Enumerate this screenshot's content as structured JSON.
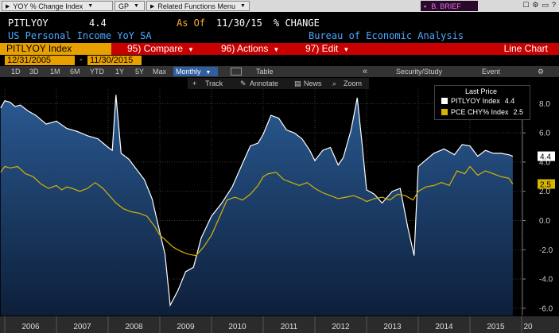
{
  "toolbar": {
    "ticker_field": "YOY % Change Index",
    "currency": "GP",
    "related": "Related Functions Menu",
    "brief": "B. BRIEF"
  },
  "header": {
    "ticker": "PITLYOY",
    "last": "4.4",
    "as_of_label": "As Of",
    "as_of_date": "11/30/15",
    "change_label": "% CHANGE",
    "description": "US Personal Income YoY SA",
    "source": "Bureau of Economic Analysis"
  },
  "function_bar": {
    "index_label": "PITLYOY Index",
    "compare": "95) Compare",
    "actions": "96) Actions",
    "edit": "97) Edit",
    "chart_type": "Line Chart"
  },
  "dates": {
    "start": "12/31/2005",
    "dash": "-",
    "end": "11/30/2015"
  },
  "period_bar": {
    "periods": [
      "1D",
      "3D",
      "1M",
      "6M",
      "YTD",
      "1Y",
      "5Y",
      "Max"
    ],
    "frequency": "Monthly",
    "table": "Table",
    "collapse": "«",
    "security_study": "Security/Study",
    "event": "Event"
  },
  "tools": {
    "track": "Track",
    "annotate": "Annotate",
    "news": "News",
    "zoom": "Zoom"
  },
  "chart_data": {
    "type": "line",
    "title": "",
    "xlabel": "",
    "ylabel": "",
    "x_tick_labels": [
      "2006",
      "2007",
      "2008",
      "2009",
      "2010",
      "2011",
      "2012",
      "2013",
      "2014",
      "2015",
      "20"
    ],
    "y_ticks": [
      -6.0,
      -4.0,
      -2.0,
      0.0,
      2.0,
      4.0,
      6.0,
      8.0
    ],
    "ylim": [
      -6.5,
      9.0
    ],
    "xlim": [
      2006.0,
      2016.0
    ],
    "legend": {
      "title": "Last Price",
      "placement": "top-right",
      "entries": [
        {
          "name": "PITLYOY Index",
          "value": "4.4",
          "color": "#ffffff"
        },
        {
          "name": "PCE CHY% Index",
          "value": "2.5",
          "color": "#d6b400"
        }
      ]
    },
    "last_value_labels": [
      {
        "series": "PITLYOY Index",
        "value": 4.4,
        "label": "4.4"
      },
      {
        "series": "PCE CHY% Index",
        "value": 2.5,
        "label": "2.5"
      }
    ],
    "series": [
      {
        "name": "PITLYOY Index",
        "color": "#ffffff",
        "fill": "area",
        "x": [
          2005.92,
          2006.0,
          2006.1,
          2006.2,
          2006.3,
          2006.45,
          2006.6,
          2006.8,
          2007.0,
          2007.2,
          2007.4,
          2007.6,
          2007.8,
          2007.9,
          2008.0,
          2008.08,
          2008.15,
          2008.25,
          2008.4,
          2008.55,
          2008.7,
          2008.85,
          2009.0,
          2009.1,
          2009.2,
          2009.35,
          2009.5,
          2009.65,
          2009.8,
          2010.0,
          2010.2,
          2010.4,
          2010.55,
          2010.75,
          2010.9,
          2011.0,
          2011.15,
          2011.3,
          2011.45,
          2011.6,
          2011.75,
          2011.9,
          2012.0,
          2012.15,
          2012.3,
          2012.45,
          2012.55,
          2012.7,
          2012.82,
          2012.92,
          2013.0,
          2013.15,
          2013.3,
          2013.5,
          2013.65,
          2013.8,
          2013.92,
          2014.0,
          2014.1,
          2014.3,
          2014.5,
          2014.7,
          2014.85,
          2015.0,
          2015.15,
          2015.3,
          2015.45,
          2015.6,
          2015.75,
          2015.83
        ],
        "y": [
          7.7,
          8.2,
          8.1,
          7.8,
          7.9,
          7.5,
          7.2,
          6.6,
          6.8,
          6.3,
          6.1,
          5.8,
          5.6,
          5.3,
          5.0,
          4.8,
          8.6,
          4.6,
          4.2,
          3.5,
          2.8,
          1.5,
          -0.8,
          -2.3,
          -5.8,
          -4.8,
          -3.5,
          -3.2,
          -1.2,
          0.3,
          1.2,
          2.3,
          3.5,
          5.1,
          5.3,
          5.9,
          7.2,
          7.0,
          6.2,
          6.0,
          5.6,
          4.8,
          4.1,
          4.8,
          5.0,
          3.8,
          4.3,
          6.2,
          8.4,
          5.0,
          2.1,
          1.8,
          1.2,
          2.0,
          2.2,
          -0.5,
          -2.4,
          3.7,
          4.0,
          4.6,
          4.9,
          4.5,
          5.2,
          5.1,
          4.4,
          4.8,
          4.6,
          4.6,
          4.5,
          4.4
        ]
      },
      {
        "name": "PCE CHY% Index",
        "color": "#d6b400",
        "fill": "none",
        "x": [
          2005.92,
          2006.0,
          2006.1,
          2006.25,
          2006.4,
          2006.55,
          2006.7,
          2006.85,
          2007.0,
          2007.1,
          2007.2,
          2007.3,
          2007.45,
          2007.6,
          2007.75,
          2007.9,
          2008.0,
          2008.15,
          2008.3,
          2008.45,
          2008.6,
          2008.75,
          2008.9,
          2009.0,
          2009.1,
          2009.25,
          2009.4,
          2009.55,
          2009.7,
          2009.85,
          2010.0,
          2010.15,
          2010.3,
          2010.45,
          2010.6,
          2010.75,
          2010.9,
          2011.0,
          2011.1,
          2011.25,
          2011.4,
          2011.55,
          2011.7,
          2011.85,
          2012.0,
          2012.15,
          2012.3,
          2012.45,
          2012.6,
          2012.75,
          2012.9,
          2013.0,
          2013.15,
          2013.3,
          2013.45,
          2013.6,
          2013.75,
          2013.9,
          2014.0,
          2014.15,
          2014.3,
          2014.45,
          2014.6,
          2014.75,
          2014.9,
          2015.0,
          2015.15,
          2015.3,
          2015.45,
          2015.6,
          2015.75,
          2015.83
        ],
        "y": [
          3.3,
          3.7,
          3.6,
          3.7,
          3.2,
          3.0,
          2.5,
          2.2,
          2.4,
          2.1,
          2.3,
          2.2,
          2.0,
          2.2,
          2.6,
          2.2,
          1.8,
          1.2,
          0.8,
          0.6,
          0.5,
          0.3,
          -0.4,
          -1.0,
          -1.3,
          -1.8,
          -2.1,
          -2.3,
          -2.4,
          -1.8,
          -1.0,
          0.2,
          1.4,
          1.6,
          1.4,
          1.8,
          2.4,
          3.0,
          3.2,
          3.3,
          2.8,
          2.6,
          2.4,
          2.6,
          2.2,
          1.9,
          1.7,
          1.5,
          1.6,
          1.7,
          1.5,
          1.3,
          1.5,
          1.6,
          1.4,
          1.8,
          1.7,
          1.4,
          2.0,
          2.3,
          2.4,
          2.6,
          2.4,
          3.4,
          3.2,
          3.7,
          3.1,
          3.4,
          3.2,
          3.0,
          2.9,
          2.5
        ]
      }
    ]
  }
}
